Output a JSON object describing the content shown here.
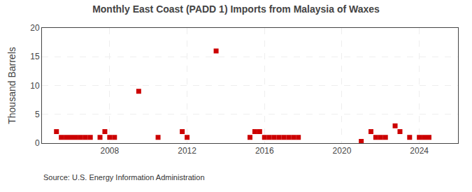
{
  "chart_data": {
    "type": "scatter",
    "title": "Monthly East Coast (PADD 1) Imports from Malaysia of Waxes",
    "ylabel": "Thousand Barrels",
    "annotations": [
      "Source: U.S. Energy Information Administration"
    ],
    "x": [
      2005.25,
      2005.5,
      2005.75,
      2006.0,
      2006.25,
      2006.5,
      2006.75,
      2007.0,
      2007.5,
      2007.75,
      2008.0,
      2008.25,
      2009.5,
      2010.5,
      2011.75,
      2012.0,
      2013.5,
      2015.25,
      2015.5,
      2015.75,
      2016.0,
      2016.25,
      2016.5,
      2016.75,
      2017.0,
      2017.25,
      2017.5,
      2017.75,
      2021.0,
      2021.5,
      2021.75,
      2022.0,
      2022.25,
      2022.75,
      2023.0,
      2023.5,
      2024.0,
      2024.25,
      2024.5
    ],
    "values": [
      2,
      1,
      1,
      1,
      1,
      1,
      1,
      1,
      1,
      2,
      1,
      1,
      9,
      1,
      2,
      1,
      16,
      1,
      2,
      2,
      1,
      1,
      1,
      1,
      1,
      1,
      1,
      1,
      0.3,
      2,
      1,
      1,
      1,
      3,
      2,
      1,
      1,
      1,
      1
    ],
    "color": "#cc0000",
    "marker": "square",
    "xlim": [
      2004.5,
      2026.0
    ],
    "xticks": [
      2008,
      2012,
      2016,
      2020,
      2024
    ],
    "ylim": [
      0,
      20
    ],
    "yticks": [
      0,
      5,
      10,
      15,
      20
    ],
    "grid": true
  }
}
